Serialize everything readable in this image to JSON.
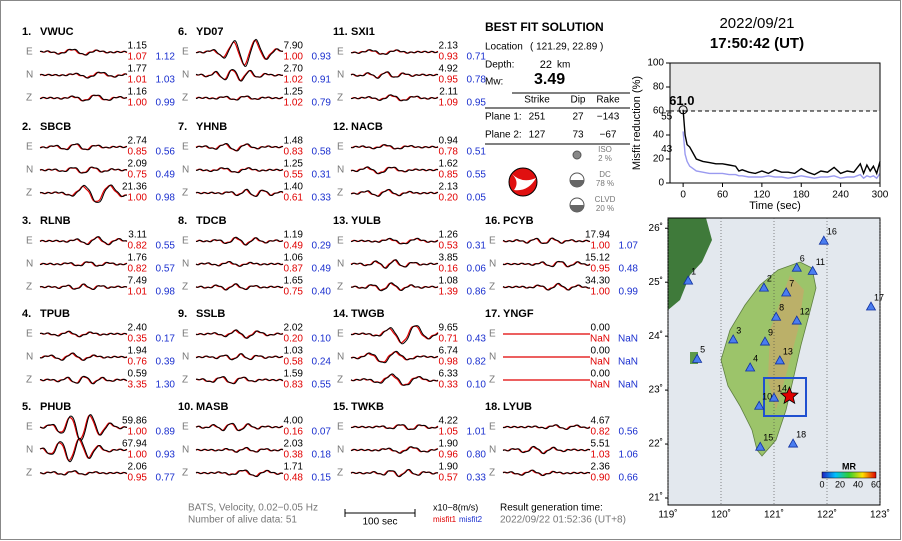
{
  "header": {
    "date": "2022/09/21",
    "time": "17:50:42  (UT)"
  },
  "components": [
    "E",
    "N",
    "Z"
  ],
  "stations": [
    {
      "number": "1.",
      "name": "VWUC",
      "traces": [
        [
          "1.15",
          "1.07",
          "1.12"
        ],
        [
          "1.77",
          "1.01",
          "1.03"
        ],
        [
          "1.16",
          "1.00",
          "0.99"
        ]
      ]
    },
    {
      "number": "2.",
      "name": "SBCB",
      "traces": [
        [
          "2.74",
          "0.85",
          "0.56"
        ],
        [
          "2.09",
          "0.75",
          "0.49"
        ],
        [
          "21.36",
          "1.00",
          "0.98"
        ]
      ]
    },
    {
      "number": "3.",
      "name": "RLNB",
      "traces": [
        [
          "3.11",
          "0.82",
          "0.55"
        ],
        [
          "1.76",
          "0.82",
          "0.57"
        ],
        [
          "7.49",
          "1.01",
          "0.98"
        ]
      ]
    },
    {
      "number": "4.",
      "name": "TPUB",
      "traces": [
        [
          "2.40",
          "0.35",
          "0.17"
        ],
        [
          "1.94",
          "0.76",
          "0.39"
        ],
        [
          "0.59",
          "3.35",
          "1.30"
        ]
      ]
    },
    {
      "number": "5.",
      "name": "PHUB",
      "traces": [
        [
          "59.86",
          "1.00",
          "0.89"
        ],
        [
          "67.94",
          "1.00",
          "0.93"
        ],
        [
          "2.06",
          "0.95",
          "0.77"
        ]
      ]
    },
    {
      "number": "6.",
      "name": "YD07",
      "traces": [
        [
          "7.90",
          "1.00",
          "0.93"
        ],
        [
          "2.70",
          "1.02",
          "0.91"
        ],
        [
          "1.25",
          "1.02",
          "0.79"
        ]
      ]
    },
    {
      "number": "7.",
      "name": "YHNB",
      "traces": [
        [
          "1.48",
          "0.83",
          "0.58"
        ],
        [
          "1.25",
          "0.55",
          "0.31"
        ],
        [
          "1.40",
          "0.61",
          "0.33"
        ]
      ]
    },
    {
      "number": "8.",
      "name": "TDCB",
      "traces": [
        [
          "1.19",
          "0.49",
          "0.29"
        ],
        [
          "1.06",
          "0.87",
          "0.49"
        ],
        [
          "1.65",
          "0.75",
          "0.40"
        ]
      ]
    },
    {
      "number": "9.",
      "name": "SSLB",
      "traces": [
        [
          "2.02",
          "0.20",
          "0.10"
        ],
        [
          "1.03",
          "0.58",
          "0.24"
        ],
        [
          "1.59",
          "0.83",
          "0.55"
        ]
      ]
    },
    {
      "number": "10.",
      "name": "MASB",
      "traces": [
        [
          "4.00",
          "0.16",
          "0.07"
        ],
        [
          "2.03",
          "0.38",
          "0.18"
        ],
        [
          "1.71",
          "0.48",
          "0.15"
        ]
      ]
    },
    {
      "number": "11.",
      "name": "SXI1",
      "traces": [
        [
          "2.13",
          "0.93",
          "0.71"
        ],
        [
          "4.92",
          "0.95",
          "0.78"
        ],
        [
          "2.11",
          "1.09",
          "0.95"
        ]
      ]
    },
    {
      "number": "12.",
      "name": "NACB",
      "traces": [
        [
          "0.94",
          "0.78",
          "0.51"
        ],
        [
          "1.62",
          "0.85",
          "0.55"
        ],
        [
          "2.13",
          "0.20",
          "0.05"
        ]
      ]
    },
    {
      "number": "13.",
      "name": "YULB",
      "traces": [
        [
          "1.26",
          "0.53",
          "0.31"
        ],
        [
          "3.85",
          "0.16",
          "0.06"
        ],
        [
          "1.08",
          "1.39",
          "0.86"
        ]
      ]
    },
    {
      "number": "14.",
      "name": "TWGB",
      "traces": [
        [
          "9.65",
          "0.71",
          "0.43"
        ],
        [
          "6.74",
          "0.98",
          "0.82"
        ],
        [
          "6.33",
          "0.33",
          "0.10"
        ]
      ]
    },
    {
      "number": "15.",
      "name": "TWKB",
      "traces": [
        [
          "4.22",
          "1.05",
          "1.01"
        ],
        [
          "1.90",
          "0.96",
          "0.80"
        ],
        [
          "1.90",
          "0.57",
          "0.33"
        ]
      ]
    },
    {
      "number": "16.",
      "name": "PCYB",
      "traces": [
        [
          "17.94",
          "1.00",
          "1.07"
        ],
        [
          "15.12",
          "0.95",
          "0.48"
        ],
        [
          "34.30",
          "1.00",
          "0.99"
        ]
      ]
    },
    {
      "number": "17.",
      "name": "YNGF",
      "traces": [
        [
          "0.00",
          "NaN",
          "NaN"
        ],
        [
          "0.00",
          "NaN",
          "NaN"
        ],
        [
          "0.00",
          "NaN",
          "NaN"
        ]
      ]
    },
    {
      "number": "18.",
      "name": "LYUB",
      "traces": [
        [
          "4.67",
          "0.82",
          "0.56"
        ],
        [
          "5.51",
          "1.03",
          "1.06"
        ],
        [
          "2.36",
          "0.90",
          "0.66"
        ]
      ]
    }
  ],
  "solution": {
    "title": "BEST FIT SOLUTION",
    "location_label": "Location",
    "location": "( 121.29,  22.89 )",
    "depth_label": "Depth:",
    "depth": "22",
    "depth_unit": "km",
    "mw_label": "Mw:",
    "mw": "3.49",
    "columns": [
      "Strike",
      "Dip",
      "Rake"
    ],
    "planes": [
      {
        "label": "Plane 1:",
        "values": [
          "251",
          "27",
          "−143"
        ]
      },
      {
        "label": "Plane 2:",
        "values": [
          "127",
          "73",
          "−67"
        ]
      }
    ],
    "components": [
      {
        "name": "ISO",
        "percent": "2 %"
      },
      {
        "name": "DC",
        "percent": "78 %"
      },
      {
        "name": "CLVD",
        "percent": "20 %"
      }
    ]
  },
  "chart_data": {
    "type": "line",
    "ylabel": "Misfit reduction (%)",
    "xlabel": "Time (sec)",
    "xlim": [
      -20,
      300
    ],
    "xticks": [
      0,
      60,
      120,
      180,
      240,
      300
    ],
    "ylim": [
      0,
      100
    ],
    "yticks": [
      0,
      20,
      40,
      60,
      80,
      100
    ],
    "threshold": 60,
    "series": [
      {
        "color": "#000000",
        "x": [
          0,
          3,
          6,
          10,
          15,
          20,
          30,
          40,
          50,
          60,
          70,
          80,
          85,
          90,
          100,
          110,
          120,
          130,
          140,
          150,
          160,
          170,
          180,
          190,
          200,
          210,
          220,
          230,
          240,
          250,
          260,
          270,
          275,
          280,
          285,
          290,
          295,
          300
        ],
        "values": [
          61,
          40,
          32,
          30,
          25,
          20,
          18,
          17,
          16,
          16,
          15,
          14,
          10,
          11,
          9,
          8,
          10,
          8,
          11,
          9,
          9,
          8,
          12,
          9,
          7,
          10,
          9,
          13,
          8,
          10,
          9,
          16,
          8,
          15,
          10,
          14,
          8,
          18
        ]
      },
      {
        "color": "#9a9af0",
        "x": [
          0,
          3,
          6,
          10,
          15,
          20,
          30,
          40,
          50,
          60,
          70,
          80,
          85,
          90,
          100,
          110,
          120,
          130,
          140,
          150,
          160,
          170,
          180,
          190,
          200,
          210,
          220,
          230,
          240,
          250,
          260,
          270,
          275,
          280,
          285,
          290,
          295,
          300
        ],
        "values": [
          43,
          24,
          18,
          14,
          12,
          10,
          9,
          8,
          8,
          8,
          7,
          7,
          6,
          6,
          5,
          5,
          5,
          6,
          5,
          5,
          4,
          5,
          6,
          5,
          4,
          5,
          5,
          6,
          4,
          5,
          5,
          7,
          4,
          6,
          5,
          6,
          4,
          8
        ]
      }
    ],
    "annotations": [
      {
        "text": "61.0",
        "x": 0,
        "y": 61,
        "color": "#e00000"
      },
      {
        "text": "55",
        "x": 0,
        "y": 55,
        "color": "#888888"
      },
      {
        "text": "43",
        "x": 0,
        "y": 43,
        "color": "#9a9af0"
      }
    ]
  },
  "map": {
    "lonlim": [
      119,
      123
    ],
    "latlim": [
      20.87,
      26.19
    ],
    "lonticks": [
      {
        "value": 119,
        "label": "119˚"
      },
      {
        "value": 120,
        "label": "120˚"
      },
      {
        "value": 121,
        "label": "121˚"
      },
      {
        "value": 122,
        "label": "122˚"
      },
      {
        "value": 123,
        "label": "123˚"
      }
    ],
    "latticks": [
      {
        "value": 26,
        "label": "26˚"
      },
      {
        "value": 25,
        "label": "25˚"
      },
      {
        "value": 24,
        "label": "24˚"
      },
      {
        "value": 23,
        "label": "23˚"
      },
      {
        "value": 22,
        "label": "22˚"
      },
      {
        "value": 21,
        "label": "21˚"
      }
    ],
    "stations": [
      {
        "label": "1",
        "lon": 119.38,
        "lat": 25.02
      },
      {
        "label": "2",
        "lon": 120.81,
        "lat": 24.89
      },
      {
        "label": "3",
        "lon": 120.23,
        "lat": 23.93
      },
      {
        "label": "4",
        "lon": 120.55,
        "lat": 23.41
      },
      {
        "label": "5",
        "lon": 119.55,
        "lat": 23.57
      },
      {
        "label": "6",
        "lon": 121.43,
        "lat": 25.26
      },
      {
        "label": "7",
        "lon": 121.23,
        "lat": 24.8
      },
      {
        "label": "8",
        "lon": 121.04,
        "lat": 24.35
      },
      {
        "label": "9",
        "lon": 120.83,
        "lat": 23.89
      },
      {
        "label": "10",
        "lon": 120.72,
        "lat": 22.7
      },
      {
        "label": "11",
        "lon": 121.73,
        "lat": 25.2
      },
      {
        "label": "12",
        "lon": 121.43,
        "lat": 24.28
      },
      {
        "label": "13",
        "lon": 121.11,
        "lat": 23.54
      },
      {
        "label": "14",
        "lon": 121.0,
        "lat": 22.85
      },
      {
        "label": "15",
        "lon": 120.74,
        "lat": 21.94
      },
      {
        "label": "16",
        "lon": 121.94,
        "lat": 25.76
      },
      {
        "label": "17",
        "lon": 122.83,
        "lat": 24.54
      },
      {
        "label": "18",
        "lon": 121.36,
        "lat": 22.0
      }
    ],
    "epicenter": {
      "lon": 121.29,
      "lat": 22.89
    },
    "colorbar": {
      "title": "MR",
      "ticks": [
        0,
        20,
        40,
        60
      ]
    }
  },
  "footer": {
    "source": "BATS, Velocity, 0.02−0.05 Hz",
    "alive": "Number of alive data: 51",
    "scale": "100 sec",
    "units": "x10−8(m/s)",
    "misfit1": "misfit1",
    "misfit2": "misfit2",
    "generated_label": "Result generation time:",
    "generated": "2022/09/22 01:52:36 (UT+8)"
  }
}
